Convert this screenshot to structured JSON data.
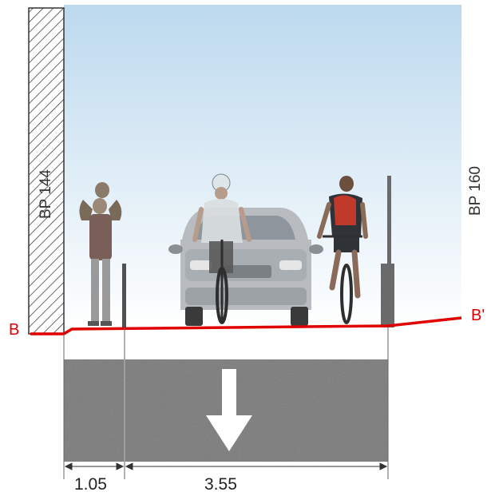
{
  "section": {
    "start_marker": "B",
    "end_marker": "B'"
  },
  "buildings": {
    "left": "BP 144",
    "right": "BP 160"
  },
  "dimensions": {
    "sidewalk_width": "1.05",
    "lane_width": "3.55"
  },
  "colors": {
    "section_line": "#e00000",
    "sky_top": "#bcd9ee",
    "asphalt": "#8a8a8a",
    "arrow": "#ffffff"
  },
  "icons": {
    "traffic_direction": "down-arrow-icon"
  }
}
